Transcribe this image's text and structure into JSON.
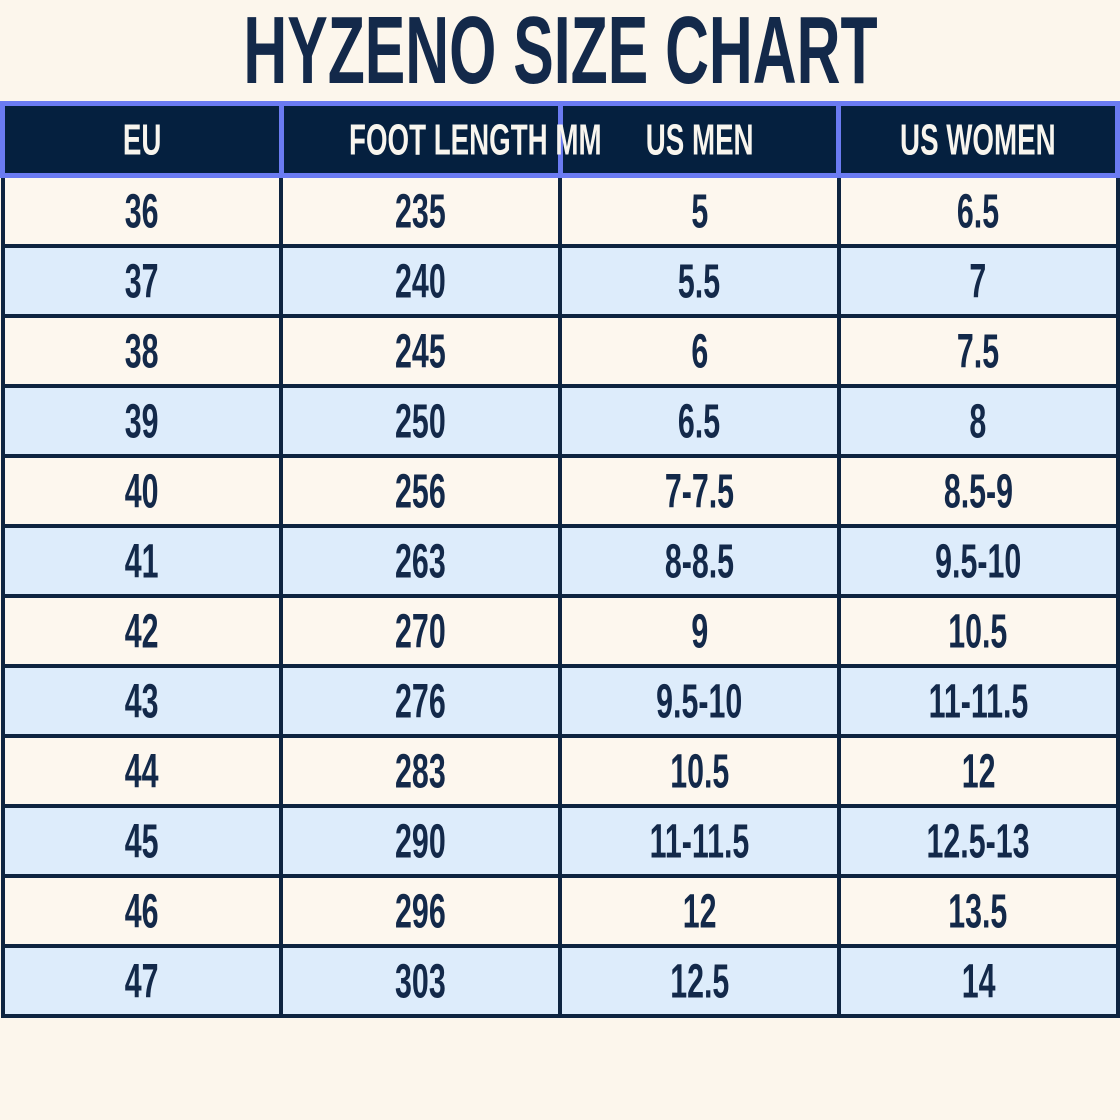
{
  "title": "HYZENO SIZE CHART",
  "chart_data": {
    "type": "table",
    "title": "HYZENO SIZE CHART",
    "columns": [
      "EU",
      "FOOT LENGTH MM",
      "US MEN",
      "US WOMEN"
    ],
    "rows": [
      [
        "36",
        "235",
        "5",
        "6.5"
      ],
      [
        "37",
        "240",
        "5.5",
        "7"
      ],
      [
        "38",
        "245",
        "6",
        "7.5"
      ],
      [
        "39",
        "250",
        "6.5",
        "8"
      ],
      [
        "40",
        "256",
        "7-7.5",
        "8.5-9"
      ],
      [
        "41",
        "263",
        "8-8.5",
        "9.5-10"
      ],
      [
        "42",
        "270",
        "9",
        "10.5"
      ],
      [
        "43",
        "276",
        "9.5-10",
        "11-11.5"
      ],
      [
        "44",
        "283",
        "10.5",
        "12"
      ],
      [
        "45",
        "290",
        "11-11.5",
        "12.5-13"
      ],
      [
        "46",
        "296",
        "12",
        "13.5"
      ],
      [
        "47",
        "303",
        "12.5",
        "14"
      ]
    ],
    "layout": {
      "row_striping": "odd rows light blue, even rows cream, first row cream",
      "header_style": "navy fill, white text, periwinkle border",
      "grid": "navy cell borders"
    }
  },
  "colors": {
    "page_background": "#fcf6ec",
    "title_text": "#13294a",
    "header_background": "#05203f",
    "header_text": "#f8f5ee",
    "header_border": "#6b7bf2",
    "body_border": "#0e2440",
    "row_cream": "#fdf7ee",
    "row_blue": "#ddecfb",
    "cell_text": "#13294a"
  }
}
